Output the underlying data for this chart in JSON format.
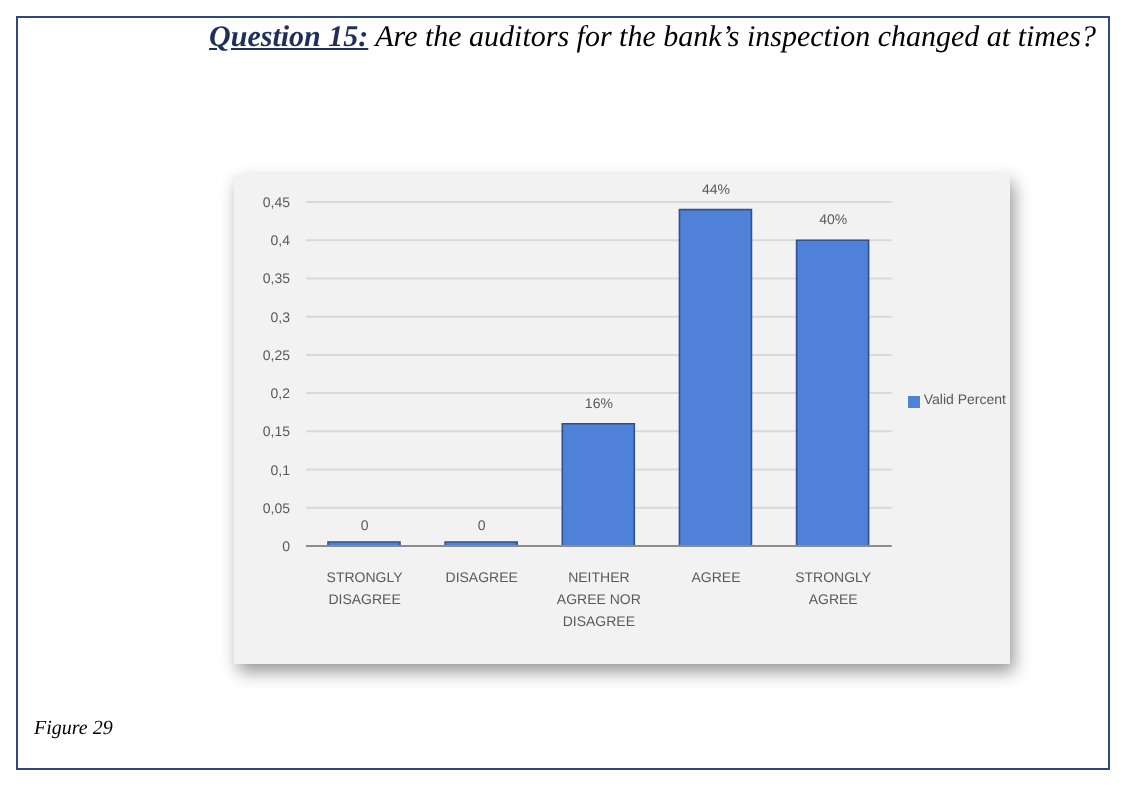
{
  "chart_data": {
    "type": "bar",
    "title": "Question 15: Are the auditors for the bank’s inspection changed at times?",
    "categories": [
      "STRONGLY DISAGREE",
      "DISAGREE",
      "NEITHER AGREE NOR DISAGREE",
      "AGREE",
      "STRONGLY AGREE"
    ],
    "series": [
      {
        "name": "Valid Percent",
        "color": "#4f81d8",
        "values": [
          0,
          0,
          0.16,
          0.44,
          0.4
        ],
        "value_labels": [
          "0",
          "0",
          "16%",
          "44%",
          "40%"
        ]
      }
    ],
    "ylim": [
      0,
      0.45
    ],
    "yticks": [
      0,
      {
        "value": 0.05,
        "label": "0,05"
      },
      {
        "value": 0.1,
        "label": "0,1"
      },
      {
        "value": 0.15,
        "label": "0,15"
      },
      {
        "value": 0.2,
        "label": "0,2"
      },
      {
        "value": 0.25,
        "label": "0,25"
      },
      {
        "value": 0.3,
        "label": "0,3"
      },
      {
        "value": 0.35,
        "label": "0,35"
      },
      {
        "value": 0.4,
        "label": "0,4"
      },
      {
        "value": 0.45,
        "label": "0,45"
      }
    ],
    "grid": "y",
    "legend": "right",
    "annotations": [
      "Figure 29"
    ]
  }
}
